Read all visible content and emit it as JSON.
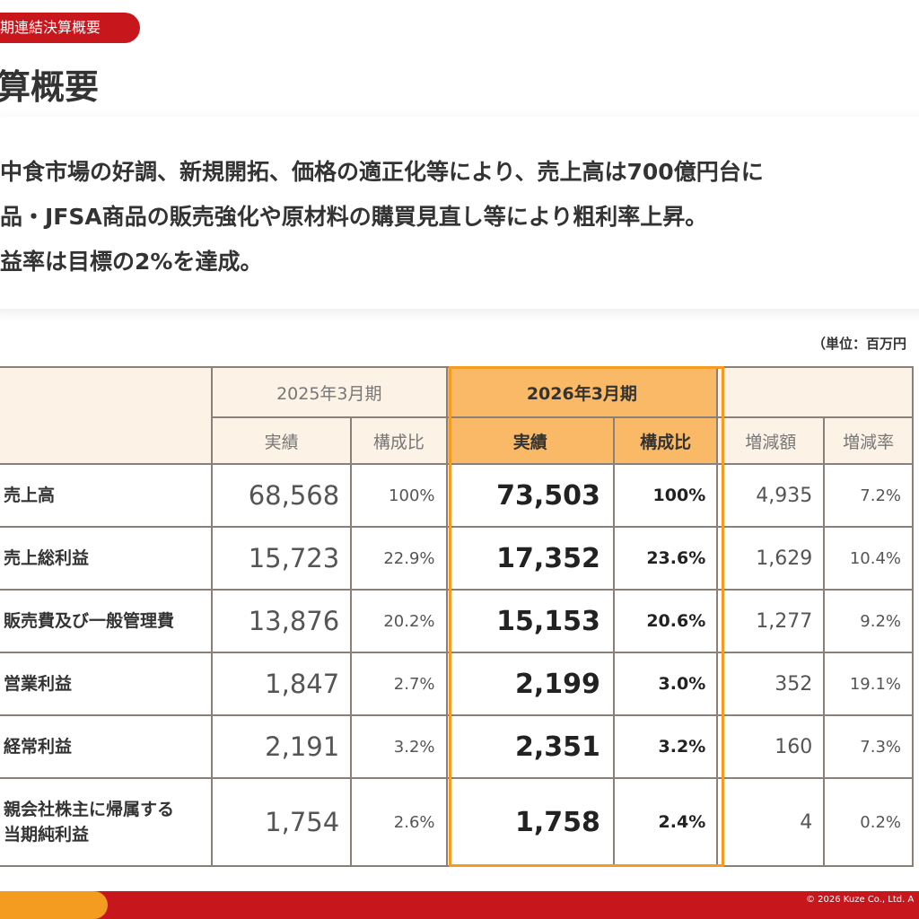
{
  "header": {
    "tag": "期連結決算概要",
    "title": "算概要"
  },
  "summary": {
    "lines": [
      "中食市場の好調、新規開拓、価格の適正化等により、売上高は700億円台に",
      "品・JFSA商品の販売強化や原材料の購買見直し等により粗利率上昇。",
      "益率は目標の2%を達成。"
    ]
  },
  "unit": "（単位：百万円",
  "table": {
    "period_prev": "2025年3月期",
    "period_cur": "2026年3月期",
    "sub_actual": "実績",
    "sub_ratio": "構成比",
    "sub_diff": "増減額",
    "sub_rate": "増減率",
    "rows": [
      {
        "label": "売上高",
        "prev": "68,568",
        "prev_ratio": "100%",
        "cur": "73,503",
        "cur_ratio": "100%",
        "diff": "4,935",
        "rate": "7.2%"
      },
      {
        "label": "売上総利益",
        "prev": "15,723",
        "prev_ratio": "22.9%",
        "cur": "17,352",
        "cur_ratio": "23.6%",
        "diff": "1,629",
        "rate": "10.4%"
      },
      {
        "label": "販売費及び一般管理費",
        "prev": "13,876",
        "prev_ratio": "20.2%",
        "cur": "15,153",
        "cur_ratio": "20.6%",
        "diff": "1,277",
        "rate": "9.2%"
      },
      {
        "label": "営業利益",
        "prev": "1,847",
        "prev_ratio": "2.7%",
        "cur": "2,199",
        "cur_ratio": "3.0%",
        "diff": "352",
        "rate": "19.1%"
      },
      {
        "label": "経常利益",
        "prev": "2,191",
        "prev_ratio": "3.2%",
        "cur": "2,351",
        "cur_ratio": "3.2%",
        "diff": "160",
        "rate": "7.3%"
      },
      {
        "label_line1": "親会社株主に帰属する",
        "label_line2": "当期純利益",
        "prev": "1,754",
        "prev_ratio": "2.6%",
        "cur": "1,758",
        "cur_ratio": "2.4%",
        "diff": "4",
        "rate": "0.2%"
      }
    ]
  },
  "footer": {
    "copyright": "© 2026 Kuze Co., Ltd. A"
  },
  "colors": {
    "brand_red": "#c8161d",
    "accent_orange": "#f39c1f",
    "header_cur": "#f9b967",
    "header_bg": "#fdf2e6"
  }
}
